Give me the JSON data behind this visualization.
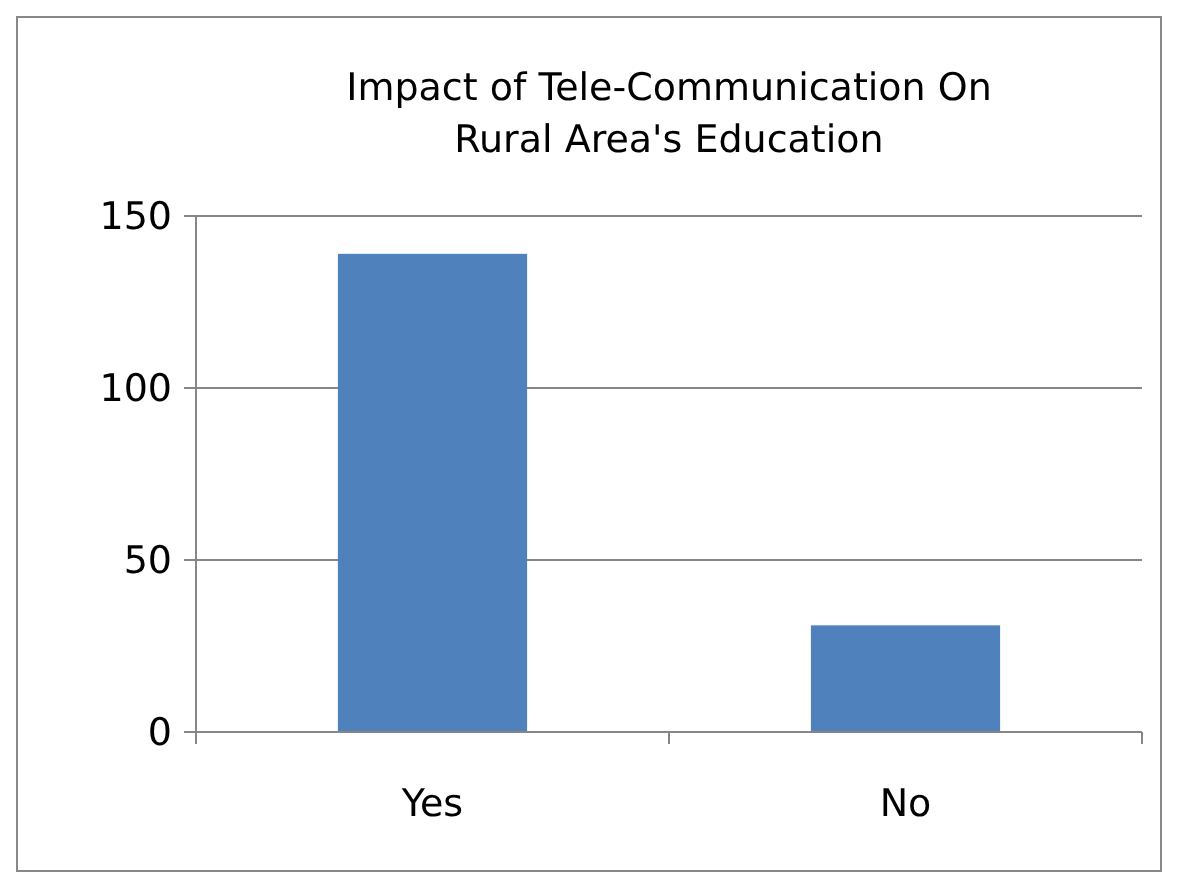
{
  "chart_data": {
    "type": "bar",
    "title": "Impact of Tele-Communication On Rural Area's Education",
    "categories": [
      "Yes",
      "No"
    ],
    "values": [
      139,
      31
    ],
    "color": "#4f81bd",
    "ylim": [
      0,
      150
    ],
    "yticks": [
      0,
      50,
      100,
      150
    ],
    "grid": "y"
  }
}
